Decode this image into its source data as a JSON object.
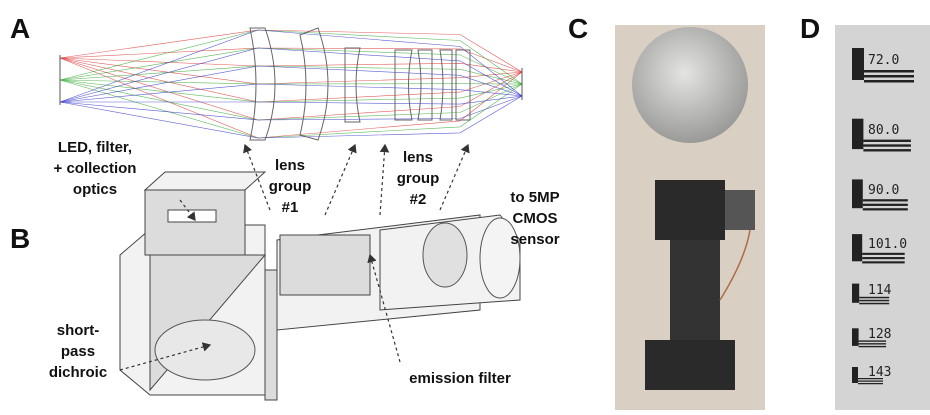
{
  "panels": [
    "A",
    "B",
    "C",
    "D"
  ],
  "annotations": {
    "led": [
      "LED, filter,",
      "+ collection",
      "optics"
    ],
    "lens_group_1": [
      "lens",
      "group",
      "#1"
    ],
    "lens_group_2": [
      "lens",
      "group",
      "#2"
    ],
    "sensor": [
      "to 5MP",
      "CMOS",
      "sensor"
    ],
    "dichroic": [
      "short-",
      "pass",
      "dichroic"
    ],
    "emission": [
      "emission filter"
    ]
  },
  "target_labels": [
    "72.0",
    "80.0",
    "90.0",
    "101.0",
    "114",
    "128",
    "143"
  ]
}
